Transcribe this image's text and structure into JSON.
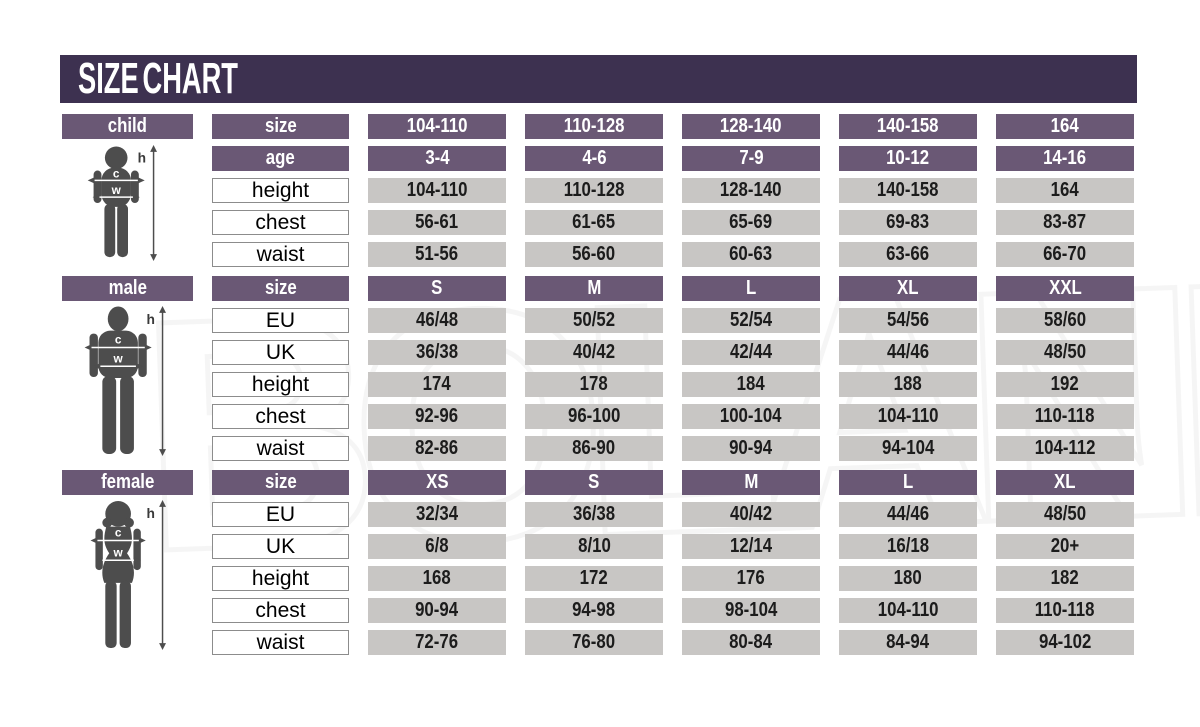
{
  "title": "SIZE CHART",
  "watermark": {
    "text": "BOLAND"
  },
  "colors": {
    "title_bar": "#3d3150",
    "header_purple": "#6a5875",
    "cell_gray": "#c8c6c4",
    "silhouette": "#4d4d4d"
  },
  "measure_labels": {
    "height": "h",
    "chest": "c",
    "waist": "w"
  },
  "sections": [
    {
      "id": "child",
      "label": "child",
      "rows": [
        {
          "label": "size",
          "type": "header",
          "values": [
            "104-110",
            "110-128",
            "128-140",
            "140-158",
            "164"
          ]
        },
        {
          "label": "age",
          "type": "header",
          "values": [
            "3-4",
            "4-6",
            "7-9",
            "10-12",
            "14-16"
          ]
        },
        {
          "label": "height",
          "type": "data",
          "values": [
            "104-110",
            "110-128",
            "128-140",
            "140-158",
            "164"
          ]
        },
        {
          "label": "chest",
          "type": "data",
          "values": [
            "56-61",
            "61-65",
            "65-69",
            "69-83",
            "83-87"
          ]
        },
        {
          "label": "waist",
          "type": "data",
          "values": [
            "51-56",
            "56-60",
            "60-63",
            "63-66",
            "66-70"
          ]
        }
      ]
    },
    {
      "id": "male",
      "label": "male",
      "rows": [
        {
          "label": "size",
          "type": "header",
          "values": [
            "S",
            "M",
            "L",
            "XL",
            "XXL"
          ]
        },
        {
          "label": "EU",
          "type": "data",
          "values": [
            "46/48",
            "50/52",
            "52/54",
            "54/56",
            "58/60"
          ]
        },
        {
          "label": "UK",
          "type": "data",
          "values": [
            "36/38",
            "40/42",
            "42/44",
            "44/46",
            "48/50"
          ]
        },
        {
          "label": "height",
          "type": "data",
          "values": [
            "174",
            "178",
            "184",
            "188",
            "192"
          ]
        },
        {
          "label": "chest",
          "type": "data",
          "values": [
            "92-96",
            "96-100",
            "100-104",
            "104-110",
            "110-118"
          ]
        },
        {
          "label": "waist",
          "type": "data",
          "values": [
            "82-86",
            "86-90",
            "90-94",
            "94-104",
            "104-112"
          ]
        }
      ]
    },
    {
      "id": "female",
      "label": "female",
      "rows": [
        {
          "label": "size",
          "type": "header",
          "values": [
            "XS",
            "S",
            "M",
            "L",
            "XL"
          ]
        },
        {
          "label": "EU",
          "type": "data",
          "values": [
            "32/34",
            "36/38",
            "40/42",
            "44/46",
            "48/50"
          ]
        },
        {
          "label": "UK",
          "type": "data",
          "values": [
            "6/8",
            "8/10",
            "12/14",
            "16/18",
            "20+"
          ]
        },
        {
          "label": "height",
          "type": "data",
          "values": [
            "168",
            "172",
            "176",
            "180",
            "182"
          ]
        },
        {
          "label": "chest",
          "type": "data",
          "values": [
            "90-94",
            "94-98",
            "98-104",
            "104-110",
            "110-118"
          ]
        },
        {
          "label": "waist",
          "type": "data",
          "values": [
            "72-76",
            "76-80",
            "80-84",
            "84-94",
            "94-102"
          ]
        }
      ]
    }
  ],
  "chart_data": {
    "type": "table",
    "title": "SIZE CHART",
    "tables": [
      {
        "name": "child",
        "row_headers": [
          "size",
          "age",
          "height",
          "chest",
          "waist"
        ],
        "rows": [
          [
            "104-110",
            "110-128",
            "128-140",
            "140-158",
            "164"
          ],
          [
            "3-4",
            "4-6",
            "7-9",
            "10-12",
            "14-16"
          ],
          [
            "104-110",
            "110-128",
            "128-140",
            "140-158",
            "164"
          ],
          [
            "56-61",
            "61-65",
            "65-69",
            "69-83",
            "83-87"
          ],
          [
            "51-56",
            "56-60",
            "60-63",
            "63-66",
            "66-70"
          ]
        ]
      },
      {
        "name": "male",
        "row_headers": [
          "size",
          "EU",
          "UK",
          "height",
          "chest",
          "waist"
        ],
        "rows": [
          [
            "S",
            "M",
            "L",
            "XL",
            "XXL"
          ],
          [
            "46/48",
            "50/52",
            "52/54",
            "54/56",
            "58/60"
          ],
          [
            "36/38",
            "40/42",
            "42/44",
            "44/46",
            "48/50"
          ],
          [
            "174",
            "178",
            "184",
            "188",
            "192"
          ],
          [
            "92-96",
            "96-100",
            "100-104",
            "104-110",
            "110-118"
          ],
          [
            "82-86",
            "86-90",
            "90-94",
            "94-104",
            "104-112"
          ]
        ]
      },
      {
        "name": "female",
        "row_headers": [
          "size",
          "EU",
          "UK",
          "height",
          "chest",
          "waist"
        ],
        "rows": [
          [
            "XS",
            "S",
            "M",
            "L",
            "XL"
          ],
          [
            "32/34",
            "36/38",
            "40/42",
            "44/46",
            "48/50"
          ],
          [
            "6/8",
            "8/10",
            "12/14",
            "16/18",
            "20+"
          ],
          [
            "168",
            "172",
            "176",
            "180",
            "182"
          ],
          [
            "90-94",
            "94-98",
            "98-104",
            "104-110",
            "110-118"
          ],
          [
            "72-76",
            "76-80",
            "80-84",
            "84-94",
            "94-102"
          ]
        ]
      }
    ]
  }
}
